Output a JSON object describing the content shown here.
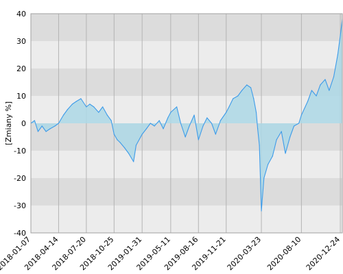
{
  "chart_data": {
    "type": "area",
    "title": "",
    "xlabel": "",
    "ylabel": "[Zmiany %]",
    "ylim": [
      -40,
      40
    ],
    "yticks": [
      -40,
      -30,
      -20,
      -10,
      0,
      10,
      20,
      30,
      40
    ],
    "xlim": [
      "2018-01-07",
      "2020-12-31"
    ],
    "xtick_labels": [
      "2018-01-07",
      "2018-04-14",
      "2018-07-20",
      "2018-10-25",
      "2019-01-31",
      "2019-05-11",
      "2019-08-16",
      "2019-11-21",
      "2020-03-23",
      "2020-08-10",
      "2020-12-24"
    ],
    "grid": true,
    "baseline": 0,
    "colors": {
      "line": "#3d9be9",
      "fill": "#add8e6",
      "band_dark": "#dcdcdc",
      "band_light": "#ececec",
      "vgrid": "#b4b4b4",
      "frame": "#a0a0a0"
    },
    "series": [
      {
        "name": "",
        "x": [
          "2018-01-07",
          "2018-01-20",
          "2018-02-01",
          "2018-02-15",
          "2018-03-01",
          "2018-03-15",
          "2018-04-01",
          "2018-04-14",
          "2018-05-01",
          "2018-05-15",
          "2018-06-01",
          "2018-06-15",
          "2018-07-01",
          "2018-07-20",
          "2018-08-01",
          "2018-08-15",
          "2018-09-01",
          "2018-09-15",
          "2018-10-01",
          "2018-10-15",
          "2018-10-25",
          "2018-11-05",
          "2018-11-15",
          "2018-12-01",
          "2018-12-15",
          "2019-01-01",
          "2019-01-10",
          "2019-01-31",
          "2019-02-15",
          "2019-03-01",
          "2019-03-15",
          "2019-04-01",
          "2019-04-15",
          "2019-05-01",
          "2019-05-11",
          "2019-06-01",
          "2019-06-15",
          "2019-07-01",
          "2019-07-15",
          "2019-08-01",
          "2019-08-16",
          "2019-09-01",
          "2019-09-15",
          "2019-10-01",
          "2019-10-15",
          "2019-11-01",
          "2019-11-21",
          "2019-12-01",
          "2019-12-15",
          "2020-01-01",
          "2020-01-15",
          "2020-02-01",
          "2020-02-15",
          "2020-02-25",
          "2020-03-05",
          "2020-03-10",
          "2020-03-16",
          "2020-03-23",
          "2020-04-01",
          "2020-04-15",
          "2020-05-01",
          "2020-05-15",
          "2020-06-01",
          "2020-06-15",
          "2020-07-01",
          "2020-07-15",
          "2020-08-01",
          "2020-08-10",
          "2020-09-01",
          "2020-09-15",
          "2020-10-01",
          "2020-10-15",
          "2020-11-01",
          "2020-11-15",
          "2020-12-01",
          "2020-12-15",
          "2020-12-24",
          "2020-12-31"
        ],
        "y": [
          0,
          1,
          -3,
          -1,
          -3,
          -2,
          -1,
          0,
          3,
          5,
          7,
          8,
          9,
          6,
          7,
          6,
          4,
          6,
          3,
          1,
          -4,
          -6,
          -7,
          -9,
          -11,
          -14,
          -8,
          -4,
          -2,
          0,
          -1,
          1,
          -2,
          2,
          4,
          6,
          0,
          -5,
          -1,
          3,
          -6,
          -1,
          2,
          0,
          -4,
          1,
          4,
          6,
          9,
          10,
          12,
          14,
          13,
          9,
          4,
          -2,
          -8,
          -32,
          -20,
          -15,
          -12,
          -6,
          -3,
          -11,
          -5,
          -1,
          0,
          3,
          8,
          12,
          10,
          14,
          16,
          12,
          17,
          25,
          32,
          38
        ]
      }
    ]
  }
}
